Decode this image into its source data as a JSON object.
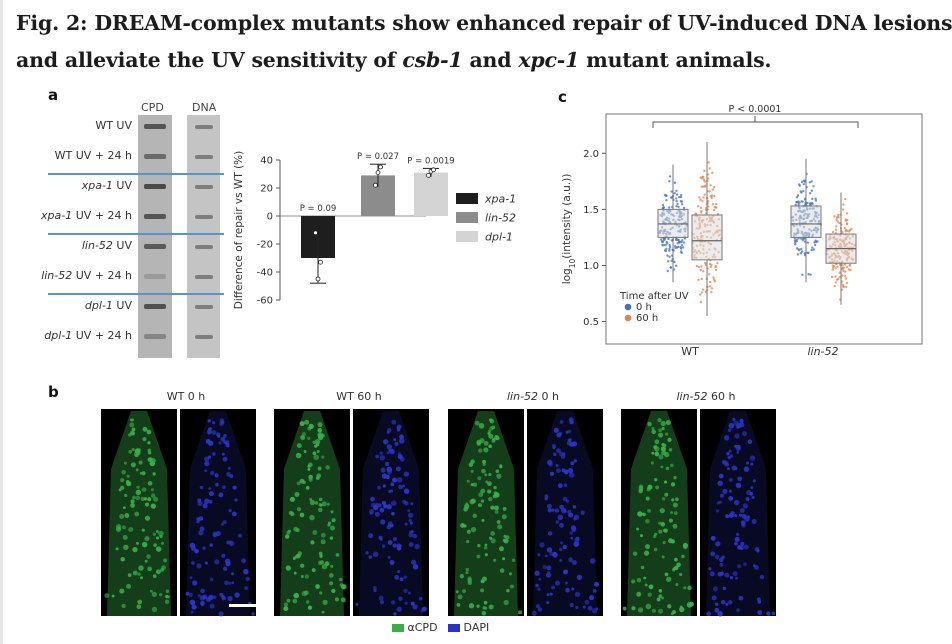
{
  "figure": {
    "title_line1": "Fig. 2: DREAM-complex mutants show enhanced repair of UV-induced DNA lesions",
    "title_line2_pre": "and alleviate the UV sensitivity of ",
    "title_line2_csb": "csb-1",
    "title_line2_and": " and ",
    "title_line2_xpc": "xpc-1",
    "title_line2_post": " mutant animals."
  },
  "panel_a": {
    "letter": "a",
    "blot": {
      "col_headers": [
        "CPD",
        "DNA"
      ],
      "lanes": [
        {
          "label_italic": "",
          "label_rest": "WT UV"
        },
        {
          "label_italic": "",
          "label_rest": "WT UV + 24 h"
        },
        {
          "label_italic": "xpa-1",
          "label_rest": " UV"
        },
        {
          "label_italic": "xpa-1",
          "label_rest": " UV + 24 h"
        },
        {
          "label_italic": "lin-52",
          "label_rest": " UV"
        },
        {
          "label_italic": "lin-52",
          "label_rest": " UV + 24 h"
        },
        {
          "label_italic": "dpl-1",
          "label_rest": " UV"
        },
        {
          "label_italic": "dpl-1",
          "label_rest": " UV + 24 h"
        }
      ]
    }
  },
  "panel_c": {
    "letter": "c"
  },
  "panel_b": {
    "letter": "b",
    "image_titles": [
      {
        "italic": "",
        "rest": "WT 0 h"
      },
      {
        "italic": "",
        "rest": "WT 60 h"
      },
      {
        "italic": "lin-52",
        "rest": " 0 h"
      },
      {
        "italic": "lin-52",
        "rest": " 60 h"
      }
    ],
    "legend": [
      {
        "label": "αCPD",
        "color": "#38b04a"
      },
      {
        "label": "DAPI",
        "color": "#2a35c8"
      }
    ]
  },
  "chart_data": [
    {
      "type": "bar",
      "panel": "a",
      "ylabel": "Difference of repair vs WT (%)",
      "ylim": [
        -60,
        40
      ],
      "yticks": [
        -60,
        -40,
        -20,
        0,
        20,
        40
      ],
      "categories": [
        "xpa-1",
        "lin-52",
        "dpl-1"
      ],
      "values": [
        -30,
        29,
        31
      ],
      "errors": [
        18,
        8,
        3
      ],
      "colors": [
        "#1e1e1e",
        "#8c8c8c",
        "#d4d4d4"
      ],
      "p_labels": [
        "P = 0.09",
        "P = 0.027",
        "P = 0.0019"
      ],
      "legend_labels": [
        "xpa-1",
        "lin-52",
        "dpl-1"
      ],
      "points": [
        [
          -12,
          -45,
          -33
        ],
        [
          22,
          31,
          35
        ],
        [
          29,
          32,
          33
        ]
      ]
    },
    {
      "type": "box",
      "panel": "c",
      "ylabel_base": "log",
      "ylabel_sub": "10",
      "ylabel_rest": "(intensity (a.u.))",
      "ylim": [
        0.3,
        2.35
      ],
      "yticks": [
        "0.5",
        "1.0",
        "1.5",
        "2.0"
      ],
      "ytick_values": [
        0.5,
        1.0,
        1.5,
        2.0
      ],
      "categories": [
        "WT",
        "lin-52"
      ],
      "legend_title": "Time after UV",
      "legend_items": [
        {
          "label": "0 h",
          "color": "#3f6fbf"
        },
        {
          "label": "60 h",
          "color": "#e4834a"
        }
      ],
      "pvalue": "P < 0.0001",
      "boxes": [
        {
          "group": "WT",
          "time": "0 h",
          "min": 0.85,
          "q1": 1.25,
          "median": 1.37,
          "q3": 1.5,
          "max": 1.9
        },
        {
          "group": "WT",
          "time": "60 h",
          "min": 0.55,
          "q1": 1.05,
          "median": 1.22,
          "q3": 1.45,
          "max": 2.1
        },
        {
          "group": "lin-52",
          "time": "0 h",
          "min": 0.85,
          "q1": 1.25,
          "median": 1.37,
          "q3": 1.53,
          "max": 1.95
        },
        {
          "group": "lin-52",
          "time": "60 h",
          "min": 0.65,
          "q1": 1.02,
          "median": 1.15,
          "q3": 1.28,
          "max": 1.65
        }
      ]
    }
  ]
}
